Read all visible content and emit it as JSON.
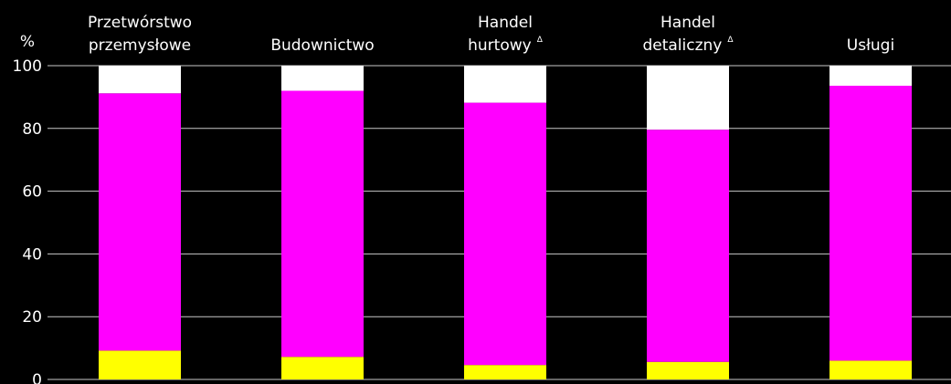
{
  "chart_data": {
    "type": "bar",
    "stacked": true,
    "unit": "%",
    "ylim": [
      0,
      100
    ],
    "yticks": [
      0,
      20,
      40,
      60,
      80,
      100
    ],
    "grid": true,
    "categories": [
      [
        "Przetwórstwo",
        "przemysłowe"
      ],
      [
        "Budownictwo"
      ],
      [
        "Handel",
        "hurtowy"
      ],
      [
        "Handel",
        "detaliczny"
      ],
      [
        "Usługi"
      ]
    ],
    "category_marks": [
      "",
      "",
      "Δ",
      "Δ",
      ""
    ],
    "series": [
      {
        "color": "#ffff00",
        "values": [
          9.2,
          7.2,
          4.6,
          5.6,
          6.0
        ]
      },
      {
        "color": "#ff00ff",
        "values": [
          82.0,
          84.8,
          83.6,
          74.0,
          87.6
        ]
      },
      {
        "color": "#ffffff",
        "values": [
          8.8,
          8.0,
          11.8,
          20.4,
          6.4
        ]
      }
    ]
  }
}
